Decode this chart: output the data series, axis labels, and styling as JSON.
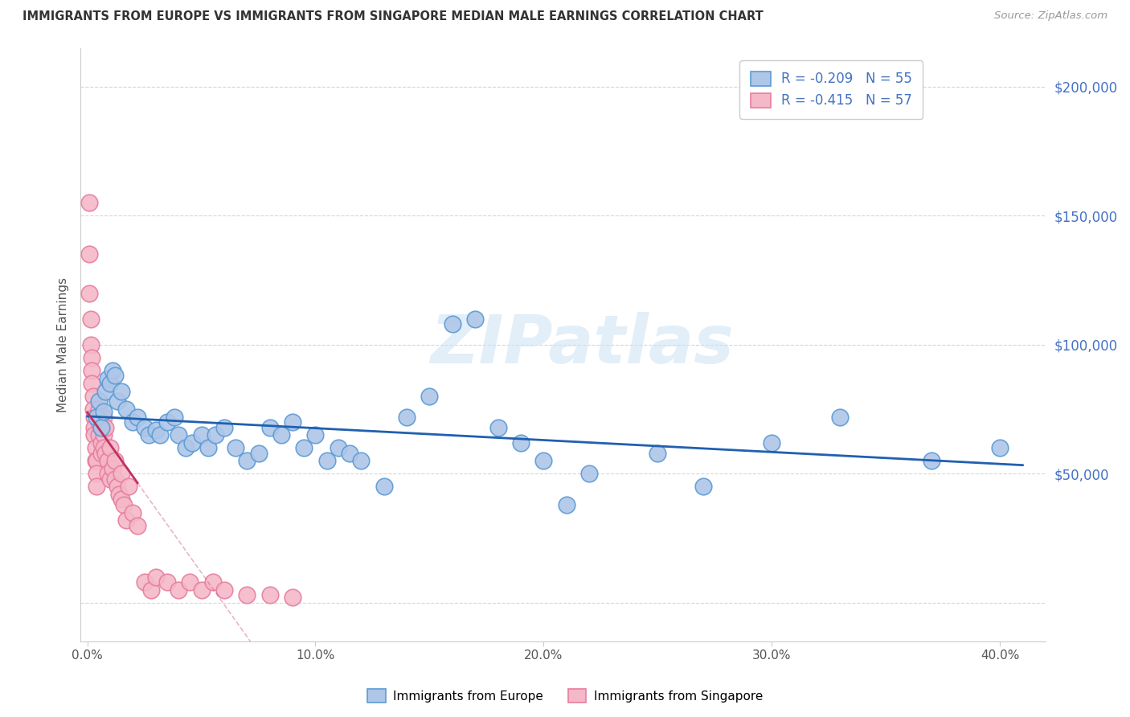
{
  "title": "IMMIGRANTS FROM EUROPE VS IMMIGRANTS FROM SINGAPORE MEDIAN MALE EARNINGS CORRELATION CHART",
  "source": "Source: ZipAtlas.com",
  "ylabel": "Median Male Earnings",
  "xlim": [
    -0.003,
    0.42
  ],
  "ylim": [
    -15000,
    215000
  ],
  "yticks": [
    0,
    50000,
    100000,
    150000,
    200000
  ],
  "ytick_labels": [
    "",
    "$50,000",
    "$100,000",
    "$150,000",
    "$200,000"
  ],
  "xticks": [
    0.0,
    0.1,
    0.2,
    0.3,
    0.4
  ],
  "xtick_labels": [
    "0.0%",
    "10.0%",
    "20.0%",
    "30.0%",
    "40.0%"
  ],
  "europe_color": "#aec6e8",
  "europe_edge": "#5b9bd5",
  "singapore_color": "#f4b8c8",
  "singapore_edge": "#e87da0",
  "trend_europe_color": "#2060b0",
  "trend_singapore_color": "#c03060",
  "background_color": "#ffffff",
  "grid_color": "#cccccc",
  "title_color": "#333333",
  "source_color": "#999999",
  "R_europe": -0.209,
  "N_europe": 55,
  "R_singapore": -0.415,
  "N_singapore": 57,
  "axis_label_color": "#4472c4",
  "europe_x": [
    0.004,
    0.005,
    0.006,
    0.007,
    0.008,
    0.009,
    0.01,
    0.011,
    0.012,
    0.013,
    0.015,
    0.017,
    0.02,
    0.022,
    0.025,
    0.027,
    0.03,
    0.032,
    0.035,
    0.038,
    0.04,
    0.043,
    0.046,
    0.05,
    0.053,
    0.056,
    0.06,
    0.065,
    0.07,
    0.075,
    0.08,
    0.085,
    0.09,
    0.095,
    0.1,
    0.105,
    0.11,
    0.115,
    0.12,
    0.13,
    0.14,
    0.15,
    0.16,
    0.17,
    0.18,
    0.19,
    0.2,
    0.21,
    0.22,
    0.25,
    0.27,
    0.3,
    0.33,
    0.37,
    0.4
  ],
  "europe_y": [
    72000,
    78000,
    68000,
    74000,
    82000,
    87000,
    85000,
    90000,
    88000,
    78000,
    82000,
    75000,
    70000,
    72000,
    68000,
    65000,
    67000,
    65000,
    70000,
    72000,
    65000,
    60000,
    62000,
    65000,
    60000,
    65000,
    68000,
    60000,
    55000,
    58000,
    68000,
    65000,
    70000,
    60000,
    65000,
    55000,
    60000,
    58000,
    55000,
    45000,
    72000,
    80000,
    108000,
    110000,
    68000,
    62000,
    55000,
    38000,
    50000,
    58000,
    45000,
    62000,
    72000,
    55000,
    60000
  ],
  "singapore_x": [
    0.001,
    0.001,
    0.001,
    0.0015,
    0.0015,
    0.002,
    0.002,
    0.002,
    0.0025,
    0.0025,
    0.003,
    0.003,
    0.003,
    0.0035,
    0.0035,
    0.004,
    0.004,
    0.004,
    0.005,
    0.005,
    0.005,
    0.006,
    0.006,
    0.006,
    0.007,
    0.007,
    0.007,
    0.008,
    0.008,
    0.009,
    0.009,
    0.01,
    0.01,
    0.011,
    0.012,
    0.012,
    0.013,
    0.014,
    0.015,
    0.015,
    0.016,
    0.017,
    0.018,
    0.02,
    0.022,
    0.025,
    0.028,
    0.03,
    0.035,
    0.04,
    0.045,
    0.05,
    0.055,
    0.06,
    0.07,
    0.08,
    0.09
  ],
  "singapore_y": [
    155000,
    135000,
    120000,
    110000,
    100000,
    95000,
    90000,
    85000,
    80000,
    75000,
    72000,
    68000,
    65000,
    60000,
    55000,
    55000,
    50000,
    45000,
    75000,
    70000,
    65000,
    68000,
    62000,
    58000,
    72000,
    65000,
    60000,
    68000,
    58000,
    55000,
    50000,
    60000,
    48000,
    52000,
    55000,
    48000,
    45000,
    42000,
    50000,
    40000,
    38000,
    32000,
    45000,
    35000,
    30000,
    8000,
    5000,
    10000,
    8000,
    5000,
    8000,
    5000,
    8000,
    5000,
    3000,
    3000,
    2000
  ]
}
